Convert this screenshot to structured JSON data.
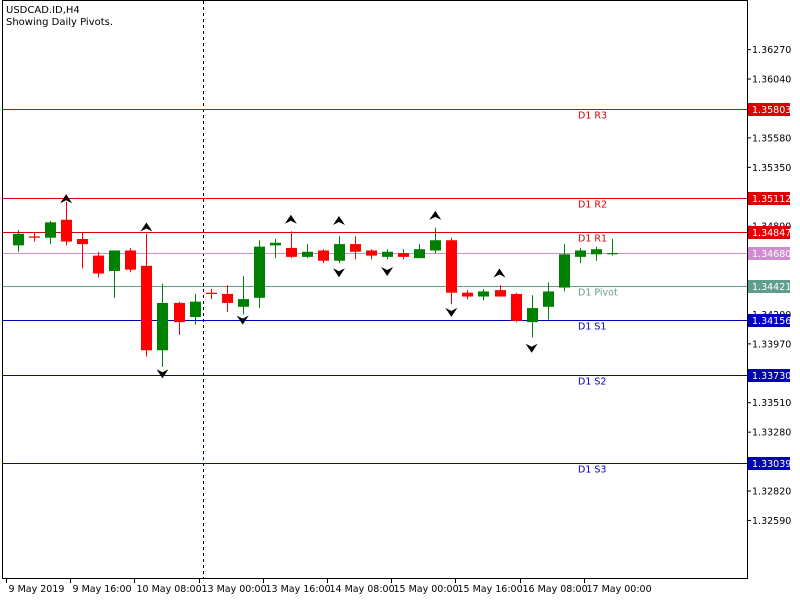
{
  "header": {
    "symbol_label": "USDCAD.ID,H4",
    "indicator_label": "Showing Daily Pivots."
  },
  "colors": {
    "background": "#ffffff",
    "bull": "#008000",
    "bear": "#ff0000",
    "resistance": "#dd0000",
    "support": "#0000bb",
    "pivot": "#5f9e8f",
    "current_price": "#d08cd0",
    "grid": "#000000",
    "fractal_arrow": "#000000"
  },
  "chart_data": {
    "type": "candlestick",
    "title": "USDCAD.ID,H4",
    "subtitle": "Showing Daily Pivots.",
    "ylim": [
      1.3214,
      1.3665
    ],
    "y_ticks": [
      "1.36270",
      "1.36040",
      "1.35580",
      "1.35350",
      "1.34890",
      "1.34200",
      "1.33970",
      "1.33510",
      "1.33280",
      "1.32820",
      "1.32590"
    ],
    "x_labels": [
      {
        "label": "9 May 2019",
        "index": 0
      },
      {
        "label": "9 May 16:00",
        "index": 4
      },
      {
        "label": "10 May 08:00",
        "index": 8
      },
      {
        "label": "13 May 00:00",
        "index": 12
      },
      {
        "label": "13 May 16:00",
        "index": 16
      },
      {
        "label": "14 May 08:00",
        "index": 20
      },
      {
        "label": "15 May 00:00",
        "index": 24
      },
      {
        "label": "15 May 16:00",
        "index": 28
      },
      {
        "label": "16 May 08:00",
        "index": 32
      },
      {
        "label": "17 May 00:00",
        "index": 36
      }
    ],
    "separator_index": 11.5,
    "pivots": [
      {
        "name": "D1 R3",
        "label": "D1 R3",
        "value": 1.35803,
        "price_label": "1.35803",
        "kind": "resistance"
      },
      {
        "name": "D1 R2",
        "label": "D1 R2",
        "value": 1.35112,
        "price_label": "1.35112",
        "kind": "resistance"
      },
      {
        "name": "D1 R1",
        "label": "D1 R1",
        "value": 1.34847,
        "price_label": "1.34847",
        "kind": "resistance"
      },
      {
        "name": "D1 Pivot",
        "label": "D1 Pivot",
        "value": 1.34421,
        "price_label": "1.34421",
        "kind": "pivot"
      },
      {
        "name": "D1 S1",
        "label": "D1 S1",
        "value": 1.34156,
        "price_label": "1.34156",
        "kind": "support"
      },
      {
        "name": "D1 S2",
        "label": "D1 S2",
        "value": 1.3373,
        "price_label": "1.33730",
        "kind": "support"
      },
      {
        "name": "D1 S3",
        "label": "D1 S3",
        "value": 1.33039,
        "price_label": "1.33039",
        "kind": "support"
      }
    ],
    "current_price": {
      "value": 1.3468,
      "label": "1.34680"
    },
    "candles": [
      {
        "o": 1.3474,
        "h": 1.3486,
        "l": 1.3469,
        "c": 1.3483
      },
      {
        "o": 1.3481,
        "h": 1.3484,
        "l": 1.3477,
        "c": 1.348
      },
      {
        "o": 1.348,
        "h": 1.3493,
        "l": 1.3475,
        "c": 1.3492
      },
      {
        "o": 1.3494,
        "h": 1.3508,
        "l": 1.3474,
        "c": 1.3477
      },
      {
        "o": 1.3479,
        "h": 1.3484,
        "l": 1.3456,
        "c": 1.3475
      },
      {
        "o": 1.3466,
        "h": 1.3469,
        "l": 1.3449,
        "c": 1.3452
      },
      {
        "o": 1.3454,
        "h": 1.347,
        "l": 1.3433,
        "c": 1.347
      },
      {
        "o": 1.347,
        "h": 1.3472,
        "l": 1.3453,
        "c": 1.3455
      },
      {
        "o": 1.3458,
        "h": 1.3483,
        "l": 1.3387,
        "c": 1.3392
      },
      {
        "o": 1.3392,
        "h": 1.3444,
        "l": 1.3379,
        "c": 1.3429
      },
      {
        "o": 1.3429,
        "h": 1.343,
        "l": 1.3404,
        "c": 1.3414
      },
      {
        "o": 1.3418,
        "h": 1.3436,
        "l": 1.3412,
        "c": 1.343
      },
      {
        "o": 1.3437,
        "h": 1.344,
        "l": 1.3432,
        "c": 1.3436
      },
      {
        "o": 1.3436,
        "h": 1.3443,
        "l": 1.3422,
        "c": 1.3429
      },
      {
        "o": 1.3426,
        "h": 1.345,
        "l": 1.342,
        "c": 1.3432
      },
      {
        "o": 1.3433,
        "h": 1.3478,
        "l": 1.3425,
        "c": 1.3473
      },
      {
        "o": 1.3474,
        "h": 1.3479,
        "l": 1.3464,
        "c": 1.3476
      },
      {
        "o": 1.3472,
        "h": 1.3485,
        "l": 1.3464,
        "c": 1.3465
      },
      {
        "o": 1.3465,
        "h": 1.3475,
        "l": 1.3464,
        "c": 1.3469
      },
      {
        "o": 1.347,
        "h": 1.3471,
        "l": 1.346,
        "c": 1.3462
      },
      {
        "o": 1.3462,
        "h": 1.3481,
        "l": 1.346,
        "c": 1.3475
      },
      {
        "o": 1.3475,
        "h": 1.3481,
        "l": 1.3463,
        "c": 1.3469
      },
      {
        "o": 1.347,
        "h": 1.3471,
        "l": 1.3463,
        "c": 1.3466
      },
      {
        "o": 1.3465,
        "h": 1.3471,
        "l": 1.3463,
        "c": 1.3469
      },
      {
        "o": 1.3468,
        "h": 1.3471,
        "l": 1.3463,
        "c": 1.3465
      },
      {
        "o": 1.3464,
        "h": 1.3475,
        "l": 1.3464,
        "c": 1.3471
      },
      {
        "o": 1.347,
        "h": 1.3488,
        "l": 1.3468,
        "c": 1.3478
      },
      {
        "o": 1.3478,
        "h": 1.348,
        "l": 1.3428,
        "c": 1.3437
      },
      {
        "o": 1.3437,
        "h": 1.3439,
        "l": 1.3432,
        "c": 1.3434
      },
      {
        "o": 1.3434,
        "h": 1.344,
        "l": 1.3431,
        "c": 1.3438
      },
      {
        "o": 1.3439,
        "h": 1.3443,
        "l": 1.3434,
        "c": 1.3434
      },
      {
        "o": 1.3436,
        "h": 1.3437,
        "l": 1.3414,
        "c": 1.3415
      },
      {
        "o": 1.3414,
        "h": 1.3435,
        "l": 1.3402,
        "c": 1.3425
      },
      {
        "o": 1.3426,
        "h": 1.3445,
        "l": 1.3416,
        "c": 1.3438
      },
      {
        "o": 1.3441,
        "h": 1.3475,
        "l": 1.3438,
        "c": 1.3467
      },
      {
        "o": 1.3465,
        "h": 1.3472,
        "l": 1.346,
        "c": 1.347
      },
      {
        "o": 1.3467,
        "h": 1.3473,
        "l": 1.3462,
        "c": 1.3471
      },
      {
        "o": 1.3468,
        "h": 1.3479,
        "l": 1.3466,
        "c": 1.3468
      }
    ],
    "fractals": [
      {
        "index": 3,
        "type": "up",
        "value": 1.351
      },
      {
        "index": 8,
        "type": "up",
        "value": 1.3488
      },
      {
        "index": 9,
        "type": "down",
        "value": 1.3374
      },
      {
        "index": 14,
        "type": "down",
        "value": 1.3416
      },
      {
        "index": 17,
        "type": "up",
        "value": 1.3494
      },
      {
        "index": 20,
        "type": "up",
        "value": 1.3493
      },
      {
        "index": 20,
        "type": "down",
        "value": 1.3453
      },
      {
        "index": 23,
        "type": "down",
        "value": 1.3454
      },
      {
        "index": 26,
        "type": "up",
        "value": 1.3497
      },
      {
        "index": 27,
        "type": "down",
        "value": 1.3422
      },
      {
        "index": 30,
        "type": "up",
        "value": 1.3452
      },
      {
        "index": 32,
        "type": "down",
        "value": 1.3394
      }
    ]
  }
}
